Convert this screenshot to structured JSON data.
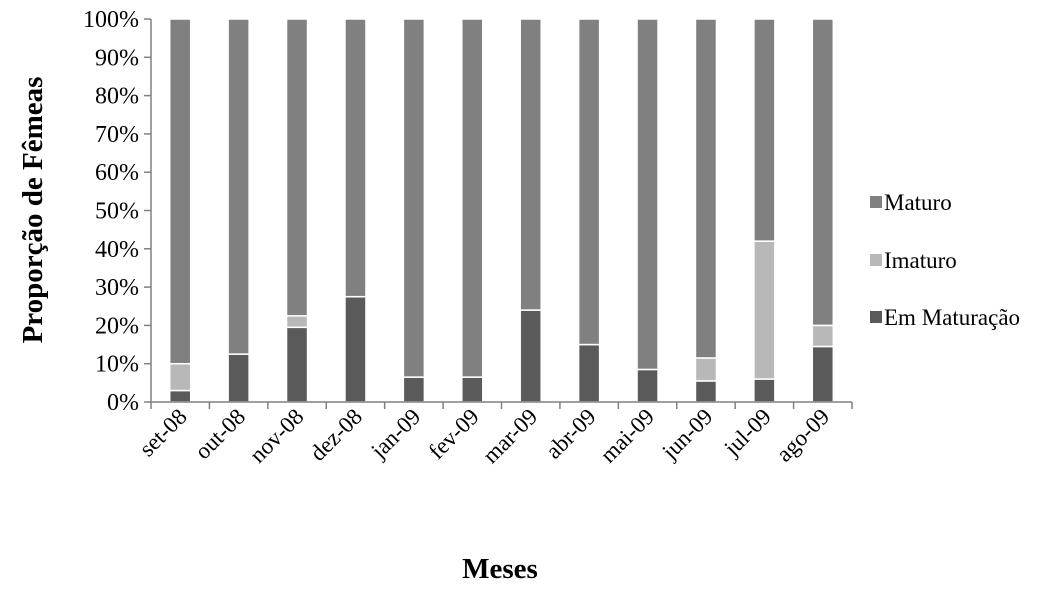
{
  "chart_data": {
    "type": "bar",
    "stacked": "percent",
    "title": "",
    "xlabel": "Meses",
    "ylabel": "Proporção de Fêmeas",
    "ylim": [
      0,
      100
    ],
    "yticks": [
      "0%",
      "10%",
      "20%",
      "30%",
      "40%",
      "50%",
      "60%",
      "70%",
      "80%",
      "90%",
      "100%"
    ],
    "categories": [
      "set-08",
      "out-08",
      "nov-08",
      "dez-08",
      "jan-09",
      "fev-09",
      "mar-09",
      "abr-09",
      "mai-09",
      "jun-09",
      "jul-09",
      "ago-09"
    ],
    "series": [
      {
        "name": "Em Maturação",
        "color": "#5a5a5a",
        "values": [
          3,
          12.5,
          19.5,
          27.5,
          6.5,
          6.5,
          24,
          15,
          8.5,
          5.5,
          6,
          14.5
        ]
      },
      {
        "name": "Imaturo",
        "color": "#b8b8b8",
        "values": [
          7,
          0,
          3,
          0,
          0,
          0,
          0,
          0,
          0,
          6,
          36,
          5.5
        ]
      },
      {
        "name": "Maturo",
        "color": "#808080",
        "values": [
          90,
          87.5,
          77.5,
          72.5,
          93.5,
          93.5,
          76,
          85,
          91.5,
          88.5,
          58,
          80
        ]
      }
    ],
    "legend_position": "right",
    "legend_order": [
      "Maturo",
      "Imaturo",
      "Em Maturação"
    ],
    "grid": false
  }
}
